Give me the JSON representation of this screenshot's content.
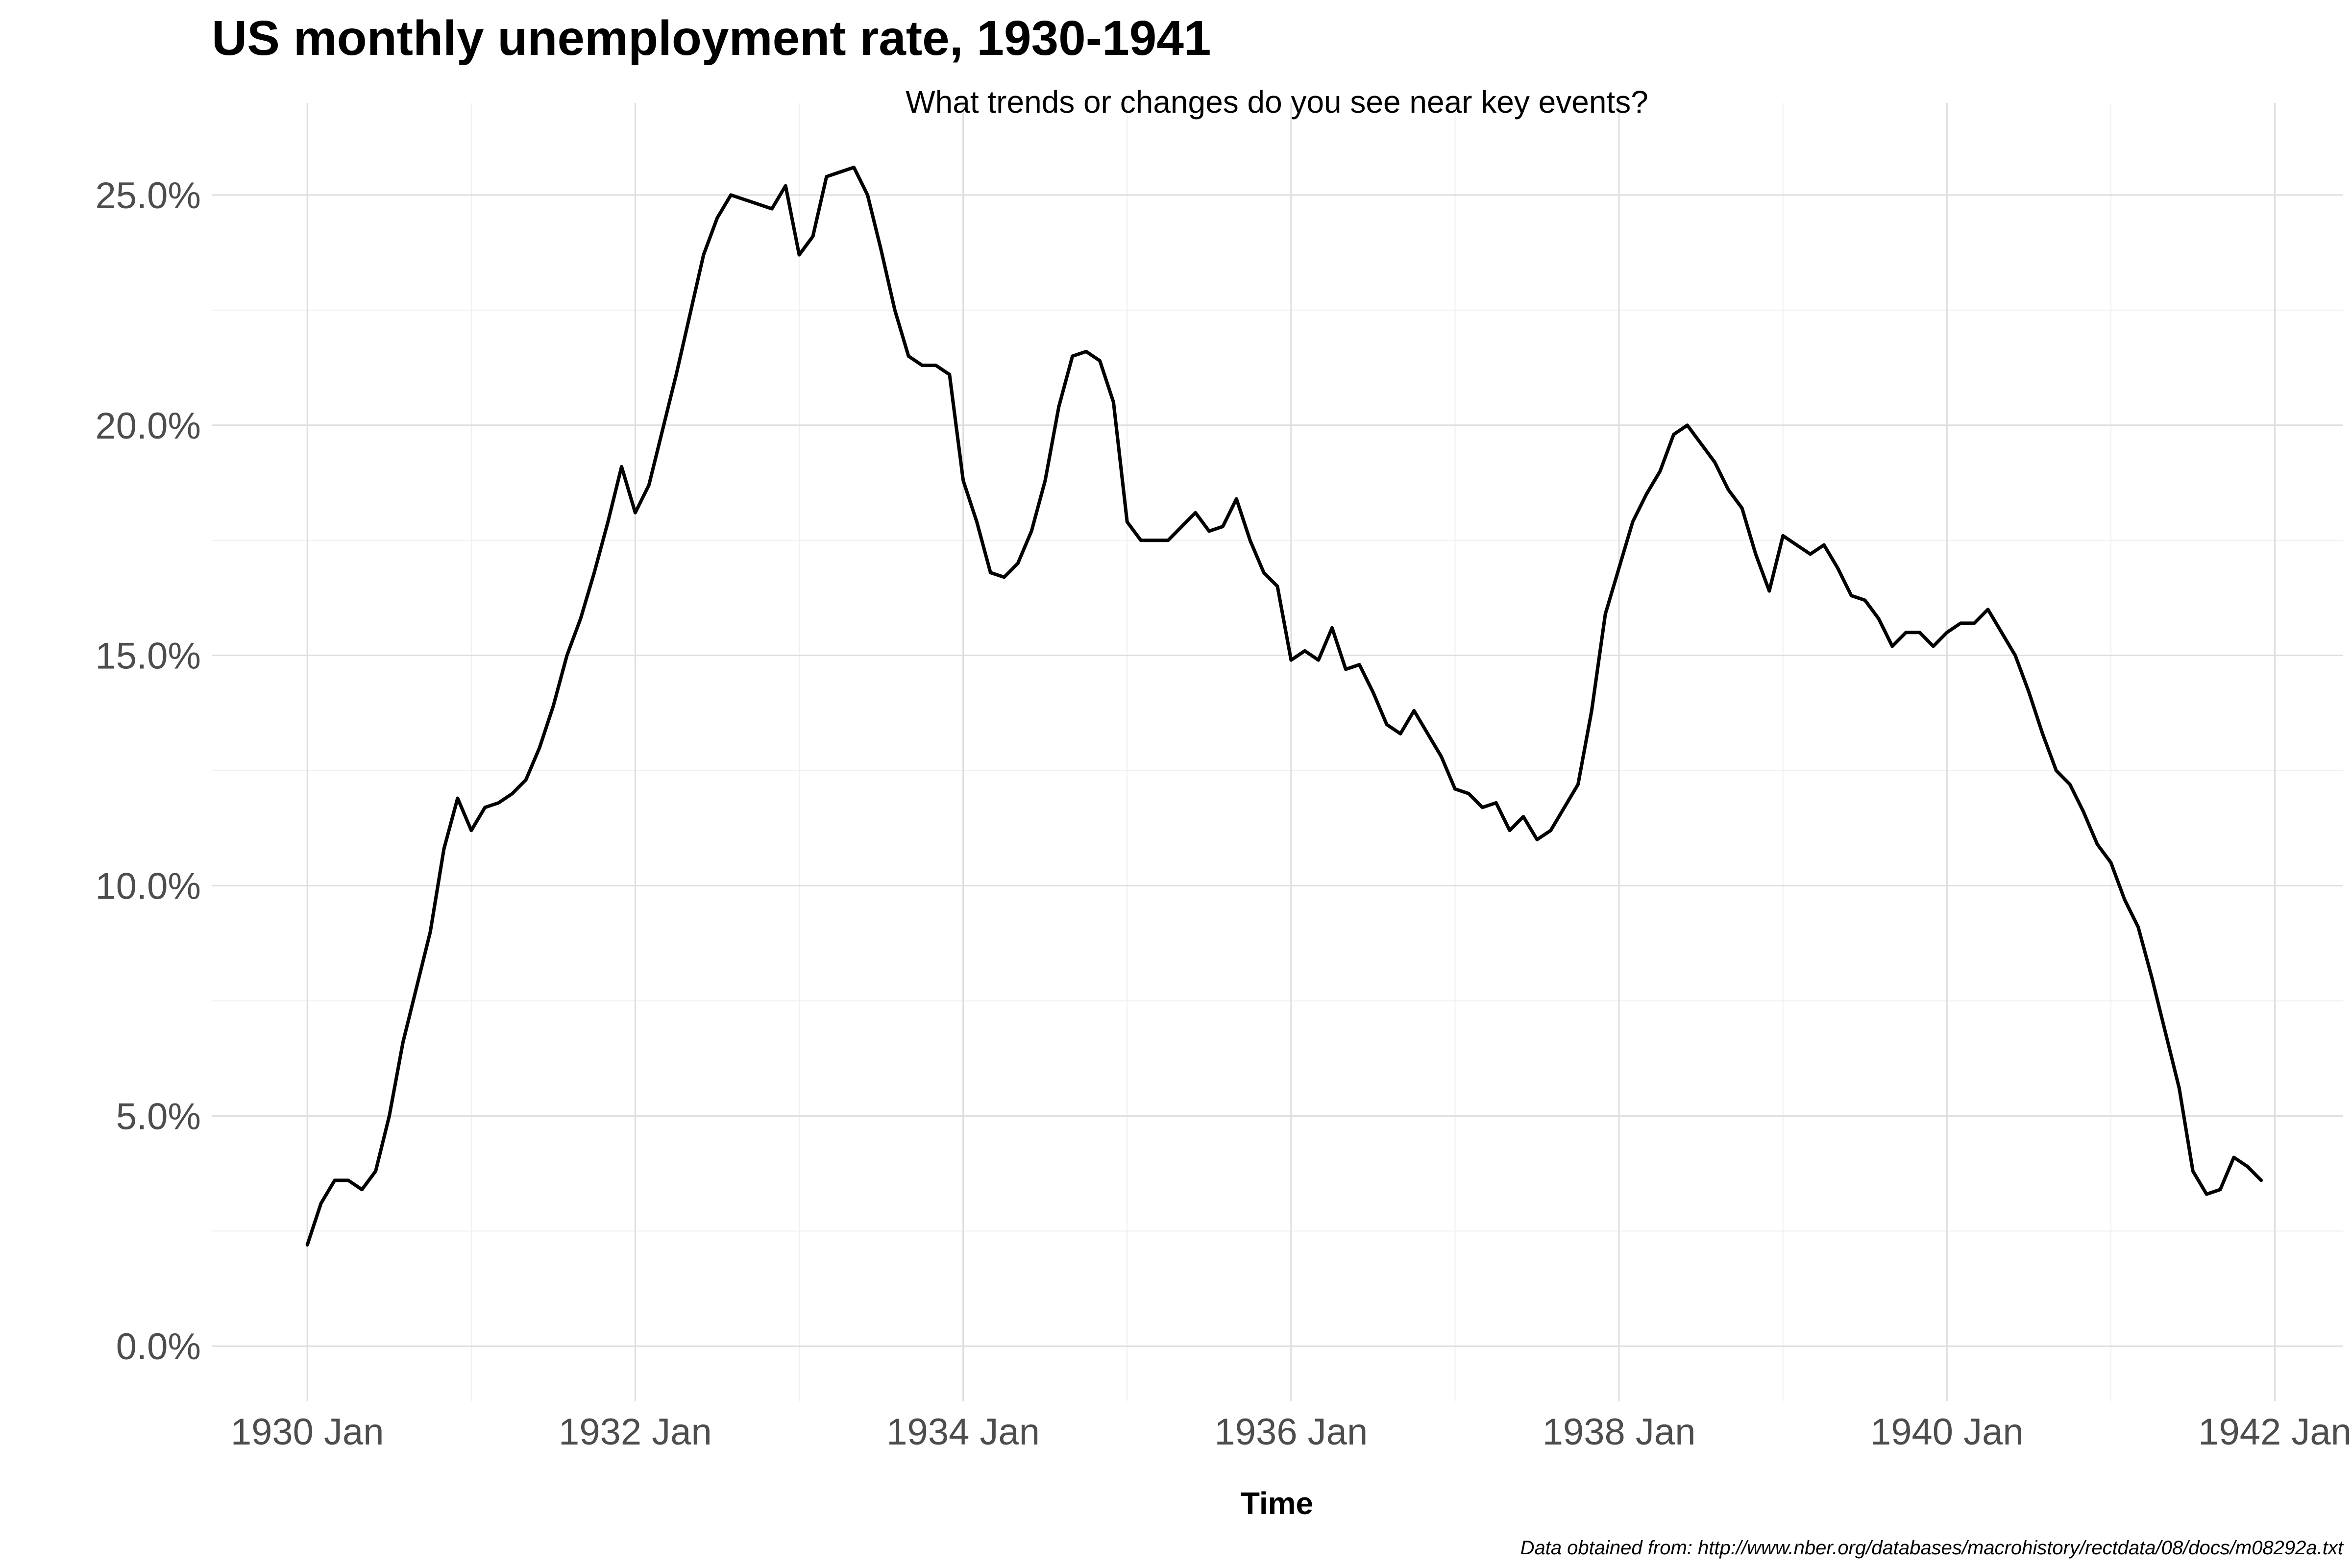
{
  "chart_data": {
    "type": "line",
    "title": "US monthly unemployment rate, 1930-1941",
    "subtitle": "What trends or changes do you see near key events?",
    "xlabel": "Time",
    "ylabel": "",
    "caption": "Data obtained from: http://www.nber.org/databases/macrohistory/rectdata/08/docs/m08292a.txt",
    "x_start": "1930-01",
    "x_end": "1941-12",
    "xlim": [
      "1929-06",
      "1942-06"
    ],
    "ylim": [
      -1.2,
      27
    ],
    "x_ticks": [
      "1930-01",
      "1932-01",
      "1934-01",
      "1936-01",
      "1938-01",
      "1940-01",
      "1942-01"
    ],
    "x_tick_labels": [
      "1930 Jan",
      "1932 Jan",
      "1934 Jan",
      "1936 Jan",
      "1938 Jan",
      "1940 Jan",
      "1942 Jan"
    ],
    "y_ticks": [
      0,
      5,
      10,
      15,
      20,
      25
    ],
    "y_tick_labels": [
      "0.0%",
      "5.0%",
      "10.0%",
      "15.0%",
      "20.0%",
      "25.0%"
    ],
    "grid": true,
    "line_color": "#000000",
    "series": [
      {
        "values": [
          2.2,
          3.1,
          3.6,
          3.6,
          3.4,
          3.8,
          5.0,
          6.6,
          7.8,
          9.0,
          10.8,
          11.9,
          11.2,
          11.7,
          11.8,
          12.0,
          12.3,
          13.0,
          13.9,
          15.0,
          15.8,
          16.8,
          17.9,
          19.1,
          18.1,
          18.7,
          19.9,
          21.1,
          22.4,
          23.7,
          24.5,
          25.0,
          24.9,
          24.8,
          24.7,
          25.2,
          23.7,
          24.1,
          25.4,
          25.5,
          25.6,
          25.0,
          23.8,
          22.5,
          21.5,
          21.3,
          21.3,
          21.1,
          18.8,
          17.9,
          16.8,
          16.7,
          17.0,
          17.7,
          18.8,
          20.4,
          21.5,
          21.6,
          21.4,
          20.5,
          17.9,
          17.5,
          17.5,
          17.5,
          17.8,
          18.1,
          17.7,
          17.8,
          18.4,
          17.5,
          16.8,
          16.5,
          14.9,
          15.1,
          14.9,
          15.6,
          14.7,
          14.8,
          14.2,
          13.5,
          13.3,
          13.8,
          13.3,
          12.8,
          12.1,
          12.0,
          11.7,
          11.8,
          11.2,
          11.5,
          11.0,
          11.2,
          11.7,
          12.2,
          13.8,
          15.9,
          16.9,
          17.9,
          18.5,
          19.0,
          19.8,
          20.0,
          19.6,
          19.2,
          18.6,
          18.2,
          17.2,
          16.4,
          17.6,
          17.4,
          17.2,
          17.4,
          16.9,
          16.3,
          16.2,
          15.8,
          15.2,
          15.5,
          15.5,
          15.2,
          15.5,
          15.7,
          15.7,
          16.0,
          15.5,
          15.0,
          14.2,
          13.3,
          12.5,
          12.2,
          11.6,
          10.9,
          10.5,
          9.7,
          9.1,
          8.0,
          6.8,
          5.6,
          3.8,
          3.3,
          3.4,
          4.1,
          3.9,
          3.6
        ]
      }
    ]
  }
}
